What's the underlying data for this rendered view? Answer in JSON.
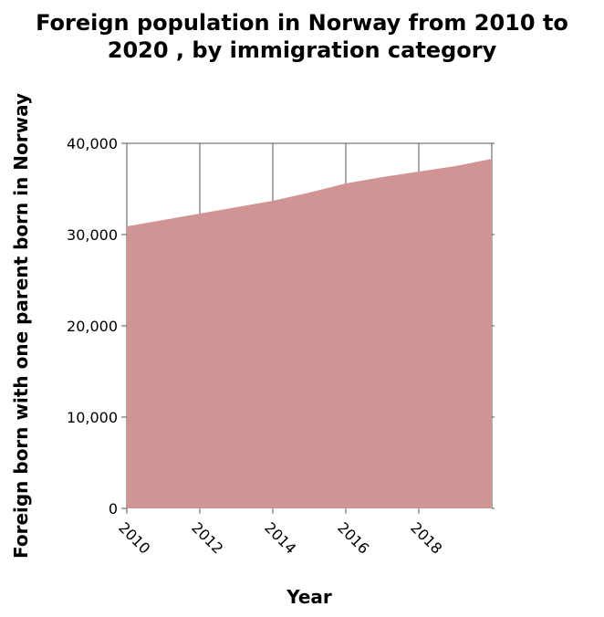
{
  "chart_data": {
    "type": "area",
    "title_line1": "Foreign population in Norway from 2010 to",
    "title_line2": "2020 , by immigration category",
    "xlabel": "Year",
    "ylabel": "Foreign born with one parent born in Norway",
    "xlim": [
      2010,
      2020
    ],
    "ylim": [
      0,
      40000
    ],
    "x_ticks": [
      2010,
      2012,
      2014,
      2016,
      2018
    ],
    "x_tick_labels": [
      "2010",
      "2012",
      "2014",
      "2016",
      "2018"
    ],
    "y_ticks": [
      0,
      10000,
      20000,
      30000,
      40000
    ],
    "y_tick_labels": [
      "0",
      "10,000",
      "20,000",
      "30,000",
      "40,000"
    ],
    "grid": "vertical",
    "fill_color": "#d09494",
    "x": [
      2010,
      2011,
      2012,
      2013,
      2014,
      2015,
      2016,
      2017,
      2018,
      2019,
      2020
    ],
    "values": [
      30900,
      31600,
      32300,
      33000,
      33700,
      34600,
      35600,
      36300,
      36900,
      37500,
      38300
    ]
  }
}
